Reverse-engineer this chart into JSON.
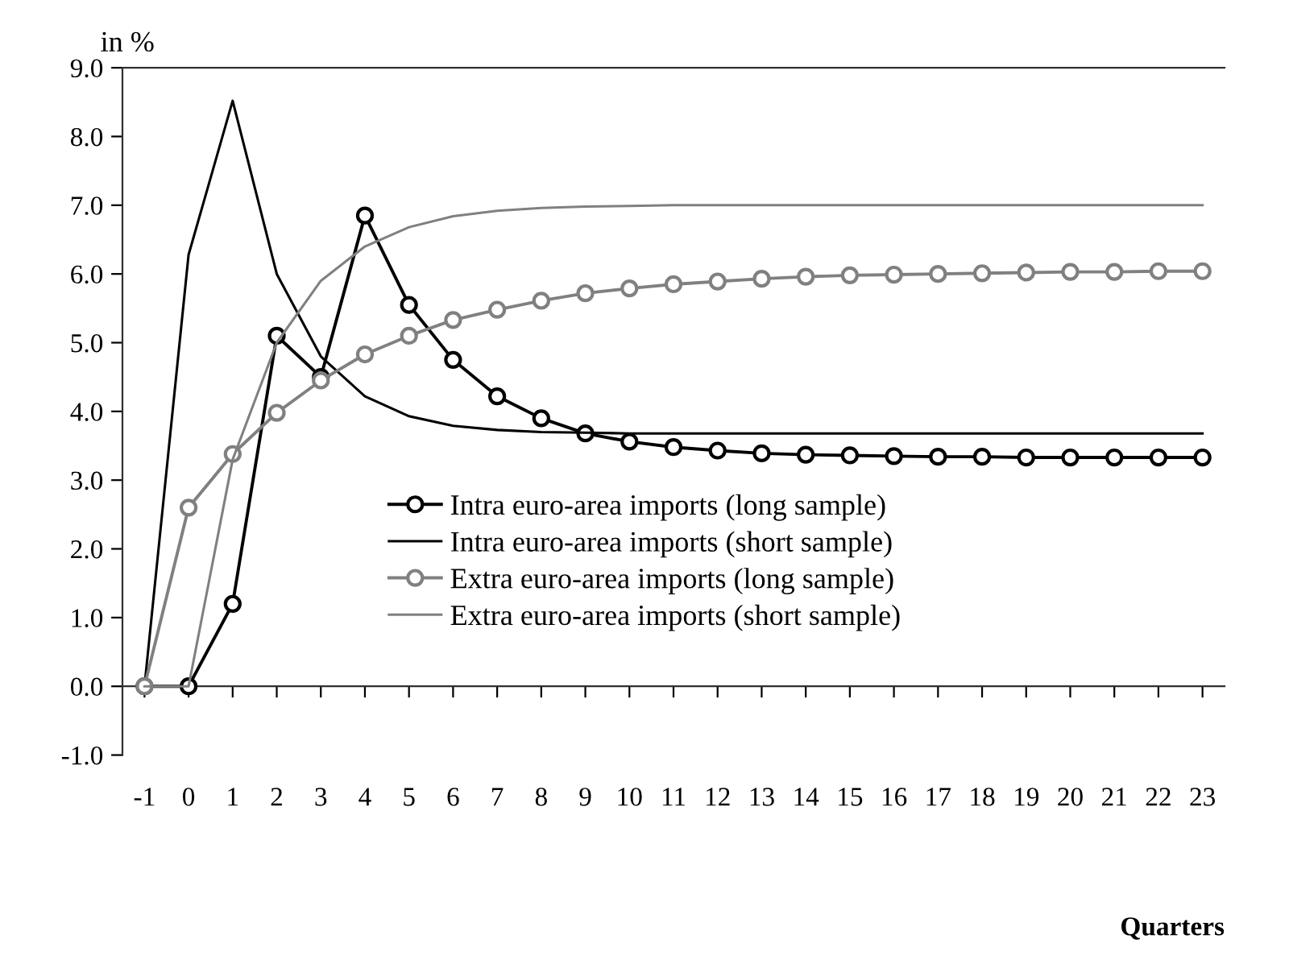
{
  "chart_data": {
    "type": "line",
    "categories": [
      "-1",
      "0",
      "1",
      "2",
      "3",
      "4",
      "5",
      "6",
      "7",
      "8",
      "9",
      "10",
      "11",
      "12",
      "13",
      "14",
      "15",
      "16",
      "17",
      "18",
      "19",
      "20",
      "21",
      "22",
      "23"
    ],
    "series": [
      {
        "name": "Intra euro-area imports (long sample)",
        "color": "#000000",
        "marker": "circle",
        "values": [
          0,
          0,
          1.2,
          5.1,
          4.5,
          6.85,
          5.55,
          4.75,
          4.22,
          3.9,
          3.68,
          3.56,
          3.48,
          3.43,
          3.39,
          3.37,
          3.36,
          3.35,
          3.34,
          3.34,
          3.33,
          3.33,
          3.33,
          3.33,
          3.33
        ]
      },
      {
        "name": "Intra euro-area imports (short sample)",
        "color": "#000000",
        "marker": "none",
        "values": [
          0,
          6.28,
          8.52,
          6.0,
          4.8,
          4.22,
          3.93,
          3.79,
          3.73,
          3.7,
          3.69,
          3.68,
          3.68,
          3.68,
          3.68,
          3.68,
          3.68,
          3.68,
          3.68,
          3.68,
          3.68,
          3.68,
          3.68,
          3.68,
          3.68
        ]
      },
      {
        "name": "Extra euro-area imports (long sample)",
        "color": "#808080",
        "marker": "circle",
        "values": [
          0,
          2.6,
          3.38,
          3.98,
          4.45,
          4.83,
          5.1,
          5.33,
          5.48,
          5.61,
          5.72,
          5.79,
          5.85,
          5.89,
          5.93,
          5.96,
          5.98,
          5.99,
          6.0,
          6.01,
          6.02,
          6.03,
          6.03,
          6.04,
          6.04
        ]
      },
      {
        "name": "Extra euro-area imports (short sample)",
        "color": "#808080",
        "marker": "none",
        "values": [
          0,
          0,
          3.3,
          5.0,
          5.9,
          6.4,
          6.68,
          6.84,
          6.92,
          6.96,
          6.98,
          6.99,
          7.0,
          7.0,
          7.0,
          7.0,
          7.0,
          7.0,
          7.0,
          7.0,
          7.0,
          7.0,
          7.0,
          7.0,
          7.0
        ]
      }
    ],
    "xlabel": "Quarters",
    "ylabel": "in %",
    "ylim": [
      -1,
      9
    ],
    "yticks": [
      {
        "value": -1,
        "label": "-1.0"
      },
      {
        "value": 0,
        "label": "0.0"
      },
      {
        "value": 1,
        "label": "1.0"
      },
      {
        "value": 2,
        "label": "2.0"
      },
      {
        "value": 3,
        "label": "3.0"
      },
      {
        "value": 4,
        "label": "4.0"
      },
      {
        "value": 5,
        "label": "5.0"
      },
      {
        "value": 6,
        "label": "6.0"
      },
      {
        "value": 7,
        "label": "7.0"
      },
      {
        "value": 8,
        "label": "8.0"
      },
      {
        "value": 9,
        "label": "9.0"
      }
    ],
    "legend": "center right",
    "line_style": "solid"
  }
}
